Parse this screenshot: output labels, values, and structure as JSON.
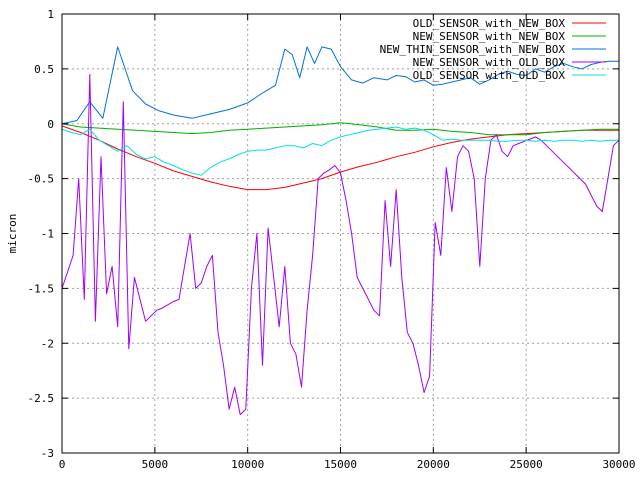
{
  "chart_data": {
    "type": "line",
    "title": "",
    "xlabel": "",
    "ylabel": "micron",
    "xlim": [
      0,
      30000
    ],
    "ylim": [
      -3,
      1
    ],
    "xticks": [
      0,
      5000,
      10000,
      15000,
      20000,
      25000,
      30000
    ],
    "yticks": [
      -3,
      -2.5,
      -2,
      -1.5,
      -1,
      -0.5,
      0,
      0.5,
      1
    ],
    "xtick_labels": [
      "0",
      "5000",
      "10000",
      "15000",
      "20000",
      "25000",
      "30000"
    ],
    "ytick_labels": [
      "-3",
      "-2.5",
      "-2",
      "-1.5",
      "-1",
      "-0.5",
      "0",
      "0.5",
      "1"
    ],
    "grid": true,
    "legend_position": "top-right",
    "series": [
      {
        "name": "OLD_SENSOR_with_NEW_BOX",
        "color": "#ff0000",
        "x": [
          0,
          1000,
          2000,
          3000,
          4000,
          5000,
          6000,
          7000,
          8000,
          9000,
          10000,
          11000,
          12000,
          13000,
          14000,
          15000,
          16000,
          17000,
          18000,
          19000,
          20000,
          21000,
          22000,
          23000,
          24000,
          25000,
          26000,
          27000,
          28000,
          29000,
          30000
        ],
        "y": [
          -0.02,
          -0.08,
          -0.15,
          -0.23,
          -0.3,
          -0.36,
          -0.43,
          -0.48,
          -0.53,
          -0.57,
          -0.6,
          -0.6,
          -0.58,
          -0.54,
          -0.5,
          -0.44,
          -0.39,
          -0.35,
          -0.3,
          -0.26,
          -0.21,
          -0.17,
          -0.14,
          -0.12,
          -0.1,
          -0.09,
          -0.08,
          -0.07,
          -0.06,
          -0.06,
          -0.06
        ]
      },
      {
        "name": "NEW_SENSOR_with_NEW_BOX",
        "color": "#00b000",
        "x": [
          0,
          1000,
          2000,
          3000,
          4000,
          5000,
          6000,
          7000,
          8000,
          9000,
          10000,
          11000,
          12000,
          13000,
          14000,
          15000,
          16000,
          17000,
          18000,
          19000,
          20000,
          21000,
          22000,
          23000,
          24000,
          25000,
          26000,
          27000,
          28000,
          29000,
          30000
        ],
        "y": [
          0.0,
          -0.03,
          -0.04,
          -0.05,
          -0.06,
          -0.07,
          -0.08,
          -0.09,
          -0.08,
          -0.06,
          -0.05,
          -0.04,
          -0.03,
          -0.02,
          -0.01,
          0.01,
          -0.01,
          -0.03,
          -0.06,
          -0.06,
          -0.05,
          -0.07,
          -0.08,
          -0.1,
          -0.1,
          -0.1,
          -0.08,
          -0.07,
          -0.06,
          -0.05,
          -0.05
        ]
      },
      {
        "name": "NEW_THIN_SENSOR_with_NEW_BOX",
        "color": "#0070e0",
        "x": [
          0,
          800,
          1500,
          2200,
          3000,
          3800,
          4500,
          5200,
          6000,
          7000,
          8000,
          9000,
          10000,
          10800,
          11000,
          11500,
          12000,
          12400,
          12800,
          13200,
          13600,
          14000,
          14500,
          15000,
          15600,
          16200,
          16800,
          17500,
          18000,
          18500,
          19000,
          19500,
          20000,
          20500,
          21000,
          21500,
          22000,
          22500,
          23000,
          23500,
          24000,
          24500,
          25000,
          25500,
          26000,
          26500,
          27000,
          27500,
          28000,
          28500,
          29000,
          29500,
          30000
        ],
        "y": [
          0.0,
          0.03,
          0.2,
          0.05,
          0.7,
          0.3,
          0.18,
          0.12,
          0.08,
          0.05,
          0.09,
          0.13,
          0.19,
          0.28,
          0.3,
          0.35,
          0.68,
          0.63,
          0.42,
          0.7,
          0.55,
          0.7,
          0.68,
          0.52,
          0.4,
          0.37,
          0.42,
          0.4,
          0.44,
          0.43,
          0.38,
          0.4,
          0.35,
          0.36,
          0.38,
          0.4,
          0.42,
          0.36,
          0.4,
          0.45,
          0.48,
          0.45,
          0.44,
          0.5,
          0.47,
          0.52,
          0.55,
          0.52,
          0.5,
          0.54,
          0.56,
          0.57,
          0.57
        ]
      },
      {
        "name": "NEW_SENSOR_with_OLD_BOX",
        "color": "#a000ff",
        "x": [
          0,
          300,
          600,
          900,
          1200,
          1500,
          1800,
          2100,
          2400,
          2700,
          3000,
          3300,
          3600,
          3900,
          4200,
          4500,
          4800,
          5100,
          5400,
          5700,
          6000,
          6300,
          6600,
          6900,
          7200,
          7500,
          7800,
          8100,
          8400,
          8700,
          9000,
          9300,
          9600,
          9900,
          10200,
          10500,
          10800,
          11100,
          11400,
          11700,
          12000,
          12300,
          12600,
          12900,
          13200,
          13500,
          13800,
          14100,
          14400,
          14700,
          15000,
          15300,
          15600,
          15900,
          16200,
          16500,
          16800,
          17100,
          17400,
          17700,
          18000,
          18300,
          18600,
          18900,
          19200,
          19500,
          19800,
          20100,
          20400,
          20700,
          21000,
          21300,
          21600,
          21900,
          22200,
          22500,
          22800,
          23100,
          23400,
          23700,
          24000,
          24300,
          24600,
          24900,
          25200,
          25500,
          25800,
          26100,
          26400,
          26700,
          27000,
          27300,
          27600,
          27900,
          28200,
          28500,
          28800,
          29100,
          29400,
          29700,
          30000
        ],
        "y": [
          -1.5,
          -1.35,
          -1.2,
          -0.5,
          -1.6,
          0.45,
          -1.8,
          -0.3,
          -1.55,
          -1.3,
          -1.85,
          0.2,
          -2.05,
          -1.4,
          -1.6,
          -1.8,
          -1.75,
          -1.7,
          -1.68,
          -1.65,
          -1.62,
          -1.6,
          -1.3,
          -1.0,
          -1.5,
          -1.45,
          -1.3,
          -1.2,
          -1.9,
          -2.2,
          -2.6,
          -2.4,
          -2.65,
          -2.6,
          -1.5,
          -1.0,
          -2.2,
          -0.95,
          -1.4,
          -1.85,
          -1.3,
          -2.0,
          -2.1,
          -2.4,
          -1.7,
          -1.2,
          -0.5,
          -0.45,
          -0.42,
          -0.38,
          -0.45,
          -0.7,
          -1.0,
          -1.4,
          -1.5,
          -1.6,
          -1.7,
          -1.75,
          -0.7,
          -1.3,
          -0.6,
          -1.4,
          -1.9,
          -2.0,
          -2.2,
          -2.45,
          -2.3,
          -0.9,
          -1.2,
          -0.4,
          -0.8,
          -0.3,
          -0.2,
          -0.25,
          -0.5,
          -1.3,
          -0.5,
          -0.15,
          -0.1,
          -0.25,
          -0.3,
          -0.2,
          -0.18,
          -0.16,
          -0.14,
          -0.12,
          -0.15,
          -0.2,
          -0.25,
          -0.3,
          -0.35,
          -0.4,
          -0.45,
          -0.5,
          -0.55,
          -0.65,
          -0.75,
          -0.8,
          -0.5,
          -0.2,
          -0.15
        ]
      },
      {
        "name": "OLD_SENSOR_with_OLD_BOX",
        "color": "#00e0e0",
        "x": [
          0,
          500,
          1000,
          1500,
          2000,
          2500,
          3000,
          3500,
          4000,
          4500,
          5000,
          5500,
          6000,
          6500,
          7000,
          7500,
          8000,
          8500,
          9000,
          9500,
          10000,
          10500,
          11000,
          11500,
          12000,
          12500,
          13000,
          13500,
          14000,
          14500,
          15000,
          15500,
          16000,
          16500,
          17000,
          17500,
          18000,
          18500,
          19000,
          19500,
          20000,
          20500,
          21000,
          21500,
          22000,
          22500,
          23000,
          23500,
          24000,
          24500,
          25000,
          25500,
          26000,
          26500,
          27000,
          27500,
          28000,
          28500,
          29000,
          29500,
          30000
        ],
        "y": [
          -0.05,
          -0.08,
          -0.1,
          -0.05,
          -0.15,
          -0.2,
          -0.25,
          -0.2,
          -0.28,
          -0.32,
          -0.3,
          -0.35,
          -0.38,
          -0.42,
          -0.45,
          -0.47,
          -0.4,
          -0.35,
          -0.32,
          -0.28,
          -0.25,
          -0.24,
          -0.24,
          -0.22,
          -0.2,
          -0.2,
          -0.22,
          -0.18,
          -0.2,
          -0.15,
          -0.12,
          -0.1,
          -0.08,
          -0.06,
          -0.05,
          -0.04,
          -0.03,
          -0.05,
          -0.04,
          -0.06,
          -0.1,
          -0.15,
          -0.14,
          -0.15,
          -0.15,
          -0.15,
          -0.15,
          -0.16,
          -0.16,
          -0.15,
          -0.15,
          -0.16,
          -0.15,
          -0.16,
          -0.15,
          -0.15,
          -0.16,
          -0.15,
          -0.16,
          -0.15,
          -0.15
        ]
      }
    ]
  }
}
